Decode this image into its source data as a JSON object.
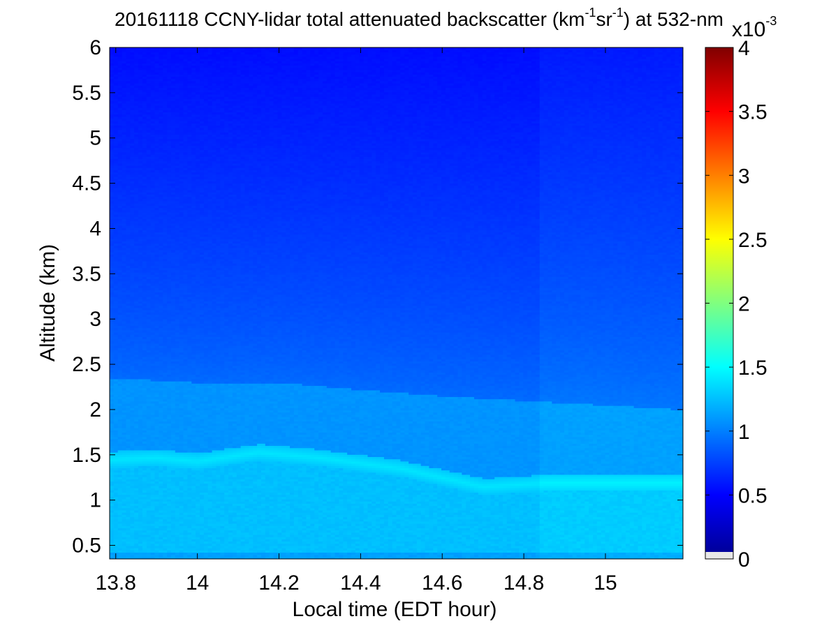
{
  "chart_data": {
    "type": "heatmap",
    "title": {
      "prefix": "20161118 CCNY-lidar total attenuated backscatter (km",
      "exp1": "-1",
      "mid": "sr",
      "exp2": "-1",
      "suffix": ") at 532-nm"
    },
    "xlabel": "Local time (EDT hour)",
    "ylabel": "Altitude (km)",
    "xlim": [
      13.785,
      15.19
    ],
    "ylim": [
      0.35,
      6.0
    ],
    "xticks": [
      "13.8",
      "14",
      "14.2",
      "14.4",
      "14.6",
      "14.8",
      "15"
    ],
    "yticks": [
      "0.5",
      "1",
      "1.5",
      "2",
      "2.5",
      "3",
      "3.5",
      "4",
      "4.5",
      "5",
      "5.5",
      "6"
    ],
    "colorbar": {
      "min": 0,
      "max": 4,
      "ticks": [
        "0",
        "0.5",
        "1",
        "1.5",
        "2",
        "2.5",
        "3",
        "3.5",
        "4"
      ],
      "scale_base": "x10",
      "scale_exp": "-3",
      "colormap": "jet"
    },
    "features": {
      "aerosol_layer_top_km": {
        "time": [
          13.8,
          13.9,
          14.0,
          14.15,
          14.3,
          14.5,
          14.7,
          14.85,
          15.0,
          15.19
        ],
        "altitude": [
          1.48,
          1.5,
          1.46,
          1.56,
          1.5,
          1.38,
          1.18,
          1.22,
          1.22,
          1.22
        ]
      },
      "residual_layer_top_km": {
        "time": [
          13.8,
          14.0,
          14.2,
          14.4,
          14.6,
          14.8,
          15.0,
          15.19
        ],
        "altitude": [
          2.35,
          2.3,
          2.3,
          2.22,
          2.15,
          2.1,
          2.05,
          2.0
        ]
      },
      "instrument_gap_time": 14.84,
      "values_x1e-3": {
        "boundary_layer": 1.25,
        "aerosol_layer_peak": 1.4,
        "residual_layer": 1.08,
        "free_troposphere_3km": 0.92,
        "free_troposphere_6km": 0.55
      }
    }
  }
}
